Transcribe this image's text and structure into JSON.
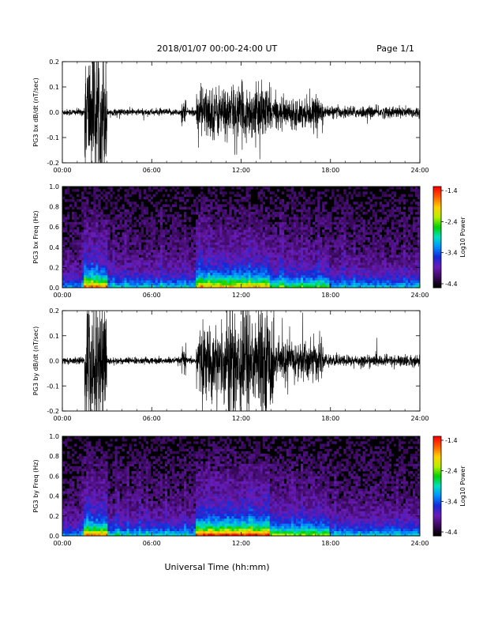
{
  "header": {
    "title": "2018/01/07  00:00-24:00 UT",
    "page": "Page 1/1"
  },
  "footer": {
    "xlabel": "Universal Time (hh:mm)"
  },
  "colors": {
    "trace": "#000000",
    "spectrogram_background": "#000000",
    "colormap": [
      "#000000",
      "#3b0a5e",
      "#6a1cb8",
      "#1428d8",
      "#0090ff",
      "#00e0c0",
      "#00d000",
      "#b8f000",
      "#ffd000",
      "#ff6000",
      "#ff0000"
    ]
  },
  "chart_data": [
    {
      "type": "line",
      "ylabel": "PG3 bx dB/dt (nT/sec)",
      "x_ticks": [
        "00:00",
        "06:00",
        "12:00",
        "18:00",
        "24:00"
      ],
      "y_ticks": [
        "0.2",
        "0.1",
        "0.0",
        "-0.1",
        "-0.2"
      ],
      "xlim": [
        0,
        24
      ],
      "ylim": [
        -0.2,
        0.2
      ],
      "x_unit": "hours UT",
      "activity": {
        "quiet_amplitude": 0.012,
        "bursts": [
          {
            "start": 1.5,
            "end": 3.0,
            "amplitude": 0.22
          },
          {
            "start": 8.0,
            "end": 8.3,
            "amplitude": 0.05
          },
          {
            "start": 9.0,
            "end": 14.0,
            "amplitude": 0.09
          },
          {
            "start": 14.0,
            "end": 17.5,
            "amplitude": 0.05
          },
          {
            "start": 17.5,
            "end": 24.0,
            "amplitude": 0.02
          }
        ]
      }
    },
    {
      "type": "heatmap",
      "ylabel": "PG3 bx Freq (Hz)",
      "x_ticks": [
        "00:00",
        "06:00",
        "12:00",
        "18:00",
        "24:00"
      ],
      "y_ticks": [
        "1.0",
        "0.8",
        "0.6",
        "0.4",
        "0.2",
        "0.0"
      ],
      "xlim": [
        0,
        24
      ],
      "ylim": [
        0,
        1
      ],
      "colorbar": {
        "label": "Log10 Power",
        "ticks": [
          "-1.4",
          "-2.4",
          "-3.4",
          "-4.4"
        ],
        "range": [
          -4.4,
          -1.4
        ]
      },
      "gap_hours": [
        8.1,
        8.2
      ],
      "activity_profile": [
        {
          "start": 0.0,
          "end": 1.5,
          "level": 0.25
        },
        {
          "start": 1.5,
          "end": 3.0,
          "level": 0.6
        },
        {
          "start": 3.0,
          "end": 9.0,
          "level": 0.3
        },
        {
          "start": 9.0,
          "end": 14.0,
          "level": 0.55
        },
        {
          "start": 14.0,
          "end": 18.0,
          "level": 0.4
        },
        {
          "start": 18.0,
          "end": 24.0,
          "level": 0.28
        }
      ]
    },
    {
      "type": "line",
      "ylabel": "PG3 by dB/dt (nT/sec)",
      "x_ticks": [
        "00:00",
        "06:00",
        "12:00",
        "18:00",
        "24:00"
      ],
      "y_ticks": [
        "0.2",
        "0.1",
        "0.0",
        "-0.1",
        "-0.2"
      ],
      "xlim": [
        0,
        24
      ],
      "ylim": [
        -0.2,
        0.2
      ],
      "x_unit": "hours UT",
      "activity": {
        "quiet_amplitude": 0.012,
        "bursts": [
          {
            "start": 1.5,
            "end": 3.0,
            "amplitude": 0.22
          },
          {
            "start": 8.0,
            "end": 8.3,
            "amplitude": 0.05
          },
          {
            "start": 9.0,
            "end": 11.0,
            "amplitude": 0.12
          },
          {
            "start": 11.0,
            "end": 12.5,
            "amplitude": 0.22
          },
          {
            "start": 12.5,
            "end": 14.2,
            "amplitude": 0.18
          },
          {
            "start": 14.2,
            "end": 17.5,
            "amplitude": 0.07
          },
          {
            "start": 17.5,
            "end": 24.0,
            "amplitude": 0.02
          }
        ]
      }
    },
    {
      "type": "heatmap",
      "ylabel": "PG3 by Freq (Hz)",
      "x_ticks": [
        "00:00",
        "06:00",
        "12:00",
        "18:00",
        "24:00"
      ],
      "y_ticks": [
        "1.0",
        "0.8",
        "0.6",
        "0.4",
        "0.2",
        "0.0"
      ],
      "xlim": [
        0,
        24
      ],
      "ylim": [
        0,
        1
      ],
      "colorbar": {
        "label": "Log10 Power",
        "ticks": [
          "-1.4",
          "-2.4",
          "-3.4",
          "-4.4"
        ],
        "range": [
          -4.4,
          -1.4
        ]
      },
      "gap_hours": [
        8.1,
        8.2
      ],
      "activity_profile": [
        {
          "start": 0.0,
          "end": 1.5,
          "level": 0.25
        },
        {
          "start": 1.5,
          "end": 3.0,
          "level": 0.6
        },
        {
          "start": 3.0,
          "end": 9.0,
          "level": 0.3
        },
        {
          "start": 9.0,
          "end": 14.0,
          "level": 0.65
        },
        {
          "start": 14.0,
          "end": 18.0,
          "level": 0.45
        },
        {
          "start": 18.0,
          "end": 24.0,
          "level": 0.3
        }
      ]
    }
  ]
}
